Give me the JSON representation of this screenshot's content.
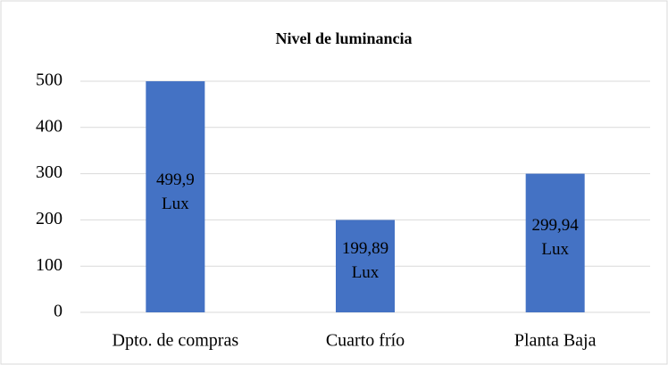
{
  "chart_data": {
    "type": "bar",
    "title": "Nivel de luminancia",
    "categories": [
      "Dpto. de compras",
      "Cuarto frío",
      "Planta Baja"
    ],
    "values": [
      499.9,
      199.89,
      299.94
    ],
    "value_labels": [
      "499,9 Lux",
      "199,89 Lux",
      "299,94 Lux"
    ],
    "color": "#4472c4",
    "ylim": [
      0,
      500
    ],
    "yticks": [
      0,
      100,
      200,
      300,
      400,
      500
    ],
    "grid": true
  }
}
